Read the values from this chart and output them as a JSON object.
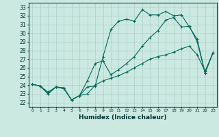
{
  "xlabel": "Humidex (Indice chaleur)",
  "xlim": [
    -0.5,
    23.5
  ],
  "ylim": [
    21.5,
    33.5
  ],
  "xticks": [
    0,
    1,
    2,
    3,
    4,
    5,
    6,
    7,
    8,
    9,
    10,
    11,
    12,
    13,
    14,
    15,
    16,
    17,
    18,
    19,
    20,
    21,
    22,
    23
  ],
  "yticks": [
    22,
    23,
    24,
    25,
    26,
    27,
    28,
    29,
    30,
    31,
    32,
    33
  ],
  "bg_color": "#cce9e1",
  "grid_color": "#aacfc8",
  "line_color": "#006858",
  "line1_x": [
    0,
    1,
    2,
    3,
    4,
    5,
    6,
    7,
    8,
    9,
    10,
    11,
    12,
    13,
    14,
    15,
    16,
    17,
    18,
    19,
    20,
    21,
    22,
    23
  ],
  "line1_y": [
    24.1,
    23.9,
    23.0,
    23.8,
    23.7,
    22.3,
    22.8,
    23.8,
    23.9,
    27.3,
    30.4,
    31.4,
    31.6,
    31.4,
    32.7,
    32.1,
    32.1,
    32.5,
    32.0,
    32.1,
    30.7,
    29.3,
    25.4,
    27.7
  ],
  "line2_x": [
    0,
    1,
    2,
    3,
    4,
    5,
    6,
    7,
    8,
    9,
    10,
    11,
    12,
    13,
    14,
    15,
    16,
    17,
    18,
    19,
    20,
    21,
    22,
    23
  ],
  "line2_y": [
    24.1,
    23.9,
    23.0,
    23.8,
    23.6,
    22.3,
    22.8,
    24.5,
    26.5,
    26.8,
    25.2,
    25.8,
    26.5,
    27.3,
    28.5,
    29.5,
    30.3,
    31.5,
    31.8,
    30.7,
    30.8,
    29.0,
    25.4,
    27.7
  ],
  "line3_x": [
    0,
    1,
    2,
    3,
    4,
    5,
    6,
    7,
    8,
    9,
    10,
    11,
    12,
    13,
    14,
    15,
    16,
    17,
    18,
    19,
    20,
    21,
    22,
    23
  ],
  "line3_y": [
    24.1,
    23.9,
    23.2,
    23.8,
    23.6,
    22.3,
    22.8,
    23.0,
    24.0,
    24.5,
    24.8,
    25.1,
    25.5,
    26.0,
    26.5,
    27.0,
    27.3,
    27.5,
    27.8,
    28.2,
    28.5,
    27.5,
    25.6,
    27.7
  ]
}
